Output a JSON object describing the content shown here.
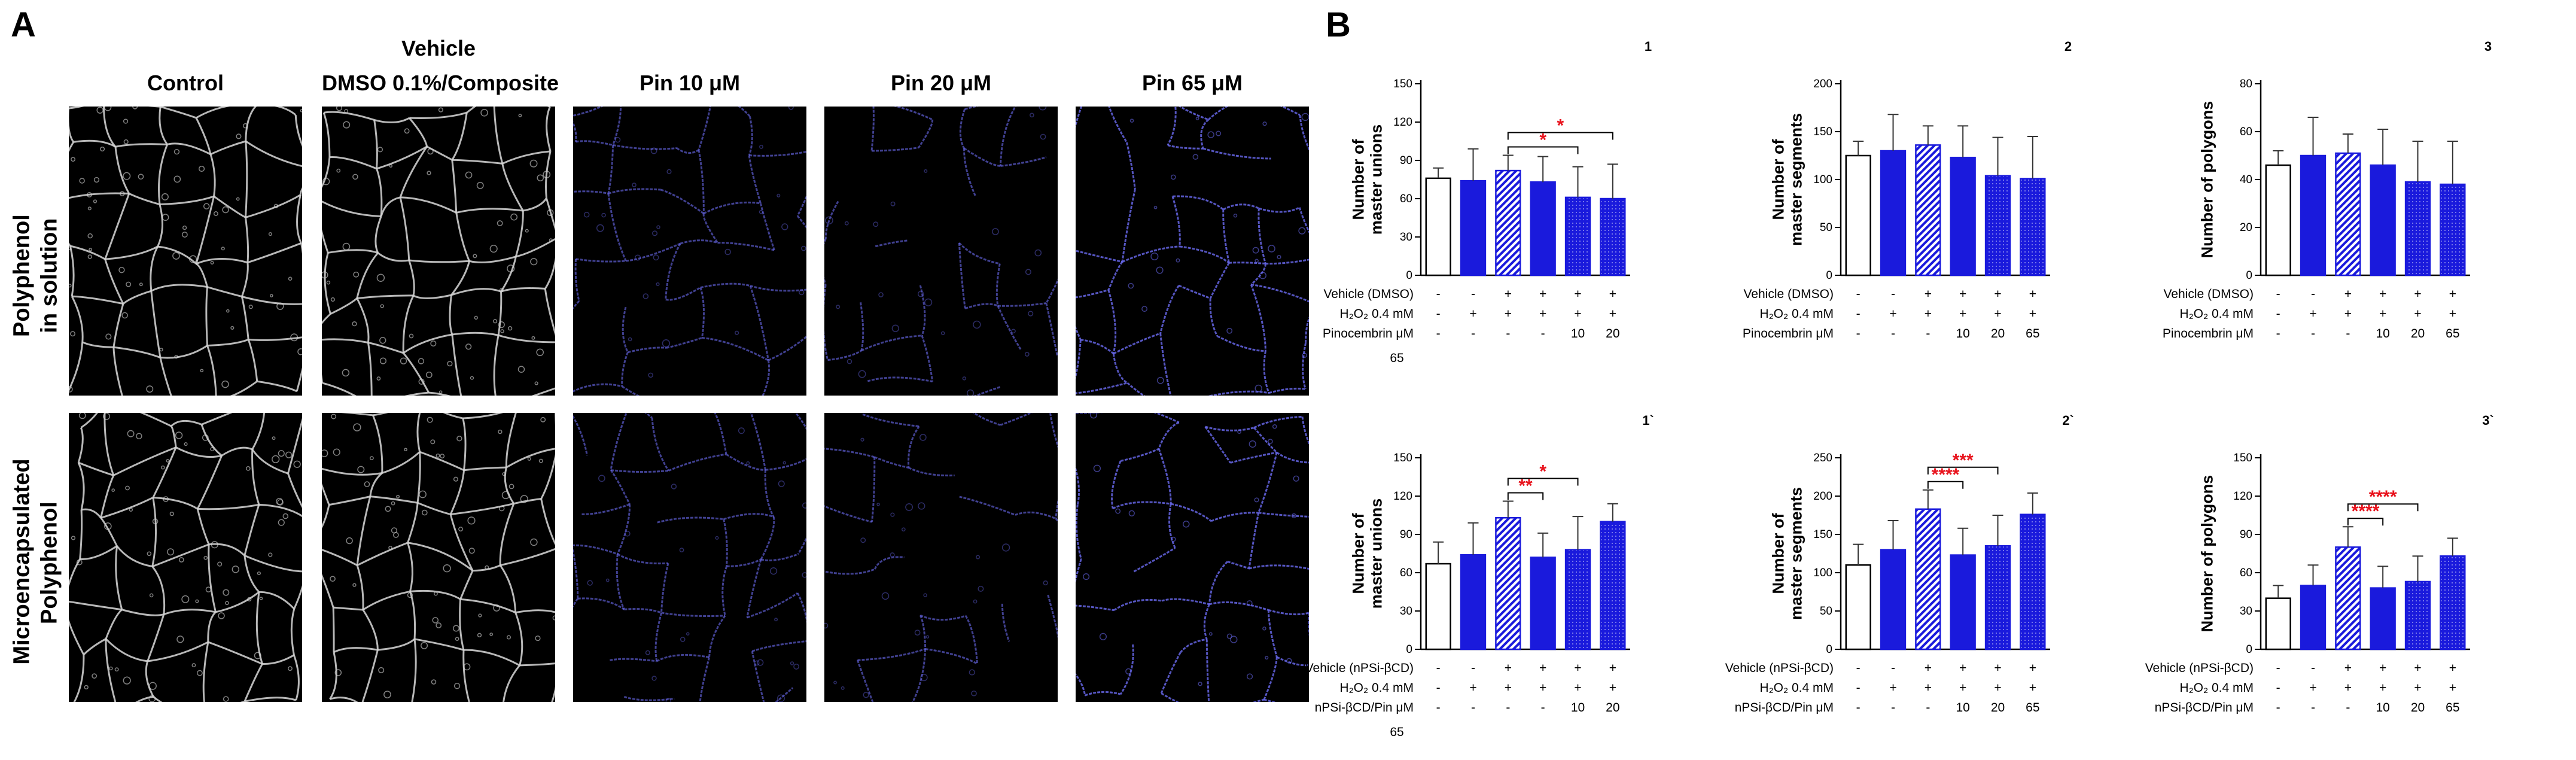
{
  "panel_a": {
    "letter": "A",
    "vehicle_header": "Vehicle",
    "columns": [
      {
        "id": "control",
        "label": "Control",
        "tone": "gray"
      },
      {
        "id": "vehicle",
        "label": "DMSO 0.1%/Composite",
        "tone": "gray"
      },
      {
        "id": "pin10",
        "label": "Pin 10 μM",
        "tone": "blue"
      },
      {
        "id": "pin20",
        "label": "Pin 20 μM",
        "tone": "blue"
      },
      {
        "id": "pin65",
        "label": "Pin 65 μM",
        "tone": "blue"
      }
    ],
    "rows": [
      {
        "id": "solution",
        "label_line1": "Polyphenol",
        "label_line2": "in solution"
      },
      {
        "id": "micro",
        "label_line1": "Microencapsulated",
        "label_line2": "Polyphenol"
      }
    ],
    "tone_colors": {
      "gray": "#d8d8d8",
      "blue": "#6a6af0"
    }
  },
  "panel_b": {
    "letter": "B"
  },
  "colors": {
    "bar_blue": "#1a1adc",
    "significance": "#e8121c",
    "axis": "#000000"
  },
  "chart_data": [
    {
      "id": "c1",
      "title": "1",
      "type": "bar",
      "ylabel_line1": "Number of",
      "ylabel_line2": "master unions",
      "ylim": [
        0,
        150
      ],
      "yticks": [
        0,
        30,
        60,
        90,
        120,
        150
      ],
      "values": [
        76,
        74,
        82,
        73,
        61,
        60
      ],
      "errors": [
        8,
        25,
        12,
        20,
        24,
        27
      ],
      "fills": [
        "white",
        "solid",
        "hatch",
        "solid",
        "dotted",
        "dotted"
      ],
      "table": [
        {
          "label": "Vehicle (DMSO)",
          "cells": [
            "-",
            "-",
            "+",
            "+",
            "+",
            "+"
          ]
        },
        {
          "label": "H₂O₂ 0.4 mM",
          "cells": [
            "-",
            "+",
            "+",
            "+",
            "+",
            "+"
          ]
        },
        {
          "label": "Pinocembrin μM",
          "cells": [
            "-",
            "-",
            "-",
            "-",
            "10",
            "20"
          ]
        }
      ],
      "extra_label": "65",
      "significance": [
        {
          "from": 2,
          "to": 4,
          "label": "*"
        },
        {
          "from": 2,
          "to": 5,
          "label": "*"
        }
      ]
    },
    {
      "id": "c2",
      "title": "2",
      "type": "bar",
      "ylabel_line1": "Number of",
      "ylabel_line2": "master segments",
      "ylim": [
        0,
        200
      ],
      "yticks": [
        0,
        50,
        100,
        150,
        200
      ],
      "values": [
        125,
        130,
        136,
        123,
        104,
        101
      ],
      "errors": [
        15,
        38,
        20,
        33,
        40,
        44
      ],
      "fills": [
        "white",
        "solid",
        "hatch",
        "solid",
        "dotted",
        "dotted"
      ],
      "table": [
        {
          "label": "Vehicle (DMSO)",
          "cells": [
            "-",
            "-",
            "+",
            "+",
            "+",
            "+"
          ]
        },
        {
          "label": "H₂O₂ 0.4 mM",
          "cells": [
            "-",
            "+",
            "+",
            "+",
            "+",
            "+"
          ]
        },
        {
          "label": "Pinocembrin μM",
          "cells": [
            "-",
            "-",
            "-",
            "10",
            "20",
            "65"
          ]
        }
      ],
      "significance": []
    },
    {
      "id": "c3",
      "title": "3",
      "type": "bar",
      "ylabel_line1": "Number of polygons",
      "ylabel_line2": "",
      "ylim": [
        0,
        80
      ],
      "yticks": [
        0,
        20,
        40,
        60,
        80
      ],
      "values": [
        46,
        50,
        51,
        46,
        39,
        38
      ],
      "errors": [
        6,
        16,
        8,
        15,
        17,
        18
      ],
      "fills": [
        "white",
        "solid",
        "hatch",
        "solid",
        "dotted",
        "dotted"
      ],
      "table": [
        {
          "label": "Vehicle (DMSO)",
          "cells": [
            "-",
            "-",
            "+",
            "+",
            "+",
            "+"
          ]
        },
        {
          "label": "H₂O₂ 0.4 mM",
          "cells": [
            "-",
            "+",
            "+",
            "+",
            "+",
            "+"
          ]
        },
        {
          "label": "Pinocembrin μM",
          "cells": [
            "-",
            "-",
            "-",
            "10",
            "20",
            "65"
          ]
        }
      ],
      "significance": []
    },
    {
      "id": "c4",
      "title": "1`",
      "type": "bar",
      "ylabel_line1": "Number of",
      "ylabel_line2": "master unions",
      "ylim": [
        0,
        150
      ],
      "yticks": [
        0,
        30,
        60,
        90,
        120,
        150
      ],
      "values": [
        67,
        74,
        103,
        72,
        78,
        100
      ],
      "errors": [
        17,
        25,
        13,
        19,
        26,
        14
      ],
      "fills": [
        "white",
        "solid",
        "hatch",
        "solid",
        "dotted",
        "dotted"
      ],
      "table": [
        {
          "label": "Vehicle (nPSi-βCD)",
          "cells": [
            "-",
            "-",
            "+",
            "+",
            "+",
            "+"
          ]
        },
        {
          "label": "H₂O₂ 0.4 mM",
          "cells": [
            "-",
            "+",
            "+",
            "+",
            "+",
            "+"
          ]
        },
        {
          "label": "nPSi-βCD/Pin μM",
          "cells": [
            "-",
            "-",
            "-",
            "-",
            "10",
            "20"
          ]
        }
      ],
      "extra_label": "65",
      "significance": [
        {
          "from": 2,
          "to": 3,
          "label": "**"
        },
        {
          "from": 2,
          "to": 4,
          "label": "*"
        }
      ]
    },
    {
      "id": "c5",
      "title": "2`",
      "type": "bar",
      "ylabel_line1": "Number of",
      "ylabel_line2": "master segments",
      "ylim": [
        0,
        250
      ],
      "yticks": [
        0,
        50,
        100,
        150,
        200,
        250
      ],
      "values": [
        110,
        130,
        183,
        123,
        135,
        176
      ],
      "errors": [
        27,
        38,
        25,
        35,
        40,
        28
      ],
      "fills": [
        "white",
        "solid",
        "hatch",
        "solid",
        "dotted",
        "dotted"
      ],
      "table": [
        {
          "label": "Vehicle (nPSi-βCD)",
          "cells": [
            "-",
            "-",
            "+",
            "+",
            "+",
            "+"
          ]
        },
        {
          "label": "H₂O₂ 0.4 mM",
          "cells": [
            "-",
            "+",
            "+",
            "+",
            "+",
            "+"
          ]
        },
        {
          "label": "nPSi-βCD/Pin μM",
          "cells": [
            "-",
            "-",
            "-",
            "10",
            "20",
            "65"
          ]
        }
      ],
      "significance": [
        {
          "from": 2,
          "to": 3,
          "label": "****"
        },
        {
          "from": 2,
          "to": 4,
          "label": "***"
        }
      ]
    },
    {
      "id": "c6",
      "title": "3`",
      "type": "bar",
      "ylabel_line1": "Number of polygons",
      "ylabel_line2": "",
      "ylim": [
        0,
        150
      ],
      "yticks": [
        0,
        30,
        60,
        90,
        120,
        150
      ],
      "values": [
        40,
        50,
        80,
        48,
        53,
        73
      ],
      "errors": [
        10,
        16,
        16,
        17,
        20,
        14
      ],
      "fills": [
        "white",
        "solid",
        "hatch",
        "solid",
        "dotted",
        "dotted"
      ],
      "table": [
        {
          "label": "Vehicle (nPSi-βCD)",
          "cells": [
            "-",
            "-",
            "+",
            "+",
            "+",
            "+"
          ]
        },
        {
          "label": "H₂O₂ 0.4 mM",
          "cells": [
            "-",
            "+",
            "+",
            "+",
            "+",
            "+"
          ]
        },
        {
          "label": "nPSi-βCD/Pin μM",
          "cells": [
            "-",
            "-",
            "-",
            "10",
            "20",
            "65"
          ]
        }
      ],
      "significance": [
        {
          "from": 2,
          "to": 3,
          "label": "****"
        },
        {
          "from": 2,
          "to": 4,
          "label": "****"
        }
      ]
    }
  ]
}
